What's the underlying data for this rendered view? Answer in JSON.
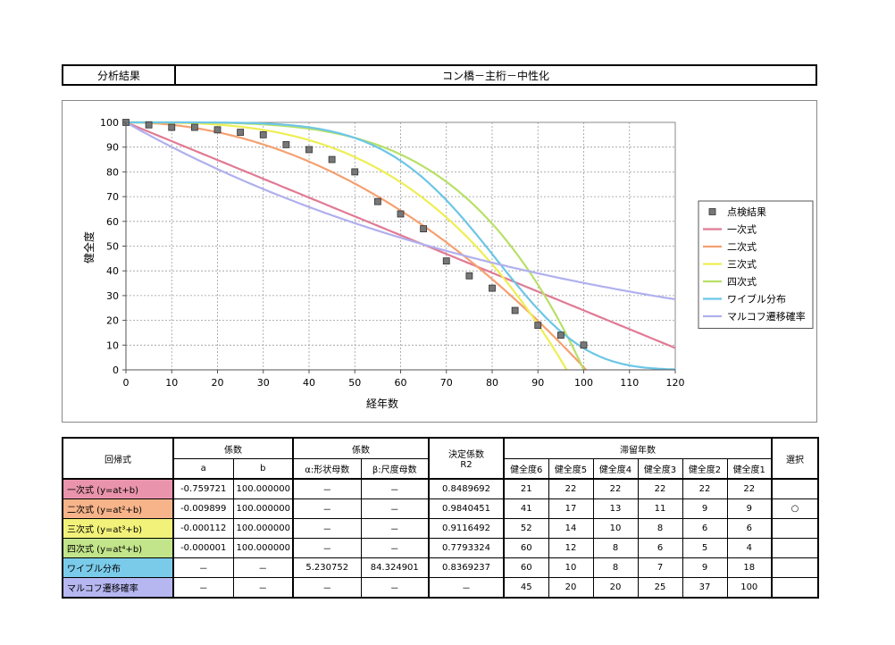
{
  "header": {
    "left": "分析結果",
    "right": "コン橋－主桁－中性化"
  },
  "chart_data": {
    "type": "scatter+line",
    "xlabel": "経年数",
    "ylabel": "健全度",
    "xlim": [
      0,
      120
    ],
    "ylim": [
      0,
      100
    ],
    "xticks": [
      0,
      10,
      20,
      30,
      40,
      50,
      60,
      70,
      80,
      90,
      100,
      110,
      120
    ],
    "yticks": [
      0,
      10,
      20,
      30,
      40,
      50,
      60,
      70,
      80,
      90,
      100
    ],
    "grid": true,
    "legend_position": "right",
    "scatter": {
      "name": "点検結果",
      "color": "#777777",
      "x": [
        0,
        5,
        10,
        15,
        20,
        25,
        30,
        35,
        40,
        45,
        50,
        55,
        60,
        65,
        70,
        75,
        80,
        85,
        90,
        95,
        100
      ],
      "y": [
        100,
        99,
        98,
        98,
        97,
        96,
        95,
        91,
        89,
        85,
        80,
        68,
        63,
        57,
        44,
        38,
        33,
        24,
        18,
        14,
        10
      ]
    },
    "series": [
      {
        "name": "一次式",
        "color": "#e07a95",
        "model": "poly",
        "a": -0.759721,
        "b": 100,
        "n": 1
      },
      {
        "name": "二次式",
        "color": "#f5a070",
        "model": "poly",
        "a": -0.009899,
        "b": 100,
        "n": 2
      },
      {
        "name": "三次式",
        "color": "#eeee55",
        "model": "poly",
        "a": -0.000112,
        "b": 100,
        "n": 3
      },
      {
        "name": "四次式",
        "color": "#b8e068",
        "model": "poly",
        "a": -1e-06,
        "b": 100,
        "n": 4
      },
      {
        "name": "ワイブル分布",
        "color": "#6cc6e6",
        "model": "weibull",
        "alpha": 5.230752,
        "beta": 84.324901
      },
      {
        "name": "マルコフ遷移確率",
        "color": "#b0b0ee",
        "model": "exp",
        "y120": 28.5
      }
    ]
  },
  "table": {
    "headers": {
      "model": "回帰式",
      "coef1": "係数",
      "coef2": "係数",
      "a": "a",
      "b": "b",
      "alpha": "α:形状母数",
      "beta": "β:尺度母数",
      "r2_line1": "決定係数",
      "r2_line2": "R2",
      "years": "滞留年数",
      "select": "選択",
      "years_cols": [
        "健全度6",
        "健全度5",
        "健全度4",
        "健全度3",
        "健全度2",
        "健全度1"
      ]
    },
    "rows": [
      {
        "label": "一次式 (y=at+b)",
        "color": "#e994ac",
        "a": "-0.759721",
        "b": "100.000000",
        "alpha": "－",
        "beta": "－",
        "r2": "0.8489692",
        "years": [
          "21",
          "22",
          "22",
          "22",
          "22",
          "22"
        ],
        "select": ""
      },
      {
        "label": "二次式 (y=at²+b)",
        "color": "#f7b48a",
        "a": "-0.009899",
        "b": "100.000000",
        "alpha": "－",
        "beta": "－",
        "r2": "0.9840451",
        "years": [
          "41",
          "17",
          "13",
          "11",
          "9",
          "9"
        ],
        "select": "○"
      },
      {
        "label": "三次式 (y=at³+b)",
        "color": "#f2f27a",
        "a": "-0.000112",
        "b": "100.000000",
        "alpha": "－",
        "beta": "－",
        "r2": "0.9116492",
        "years": [
          "52",
          "14",
          "10",
          "8",
          "6",
          "6"
        ],
        "select": ""
      },
      {
        "label": "四次式 (y=at⁴+b)",
        "color": "#c2e48a",
        "a": "-0.000001",
        "b": "100.000000",
        "alpha": "－",
        "beta": "－",
        "r2": "0.7793324",
        "years": [
          "60",
          "12",
          "8",
          "6",
          "5",
          "4"
        ],
        "select": ""
      },
      {
        "label": "ワイブル分布",
        "color": "#7acbea",
        "a": "－",
        "b": "－",
        "alpha": "5.230752",
        "beta": "84.324901",
        "r2": "0.8369237",
        "years": [
          "60",
          "10",
          "8",
          "7",
          "9",
          "18"
        ],
        "select": ""
      },
      {
        "label": "マルコフ遷移確率",
        "color": "#b6b6f0",
        "a": "－",
        "b": "－",
        "alpha": "－",
        "beta": "－",
        "r2": "－",
        "years": [
          "45",
          "20",
          "20",
          "25",
          "37",
          "100"
        ],
        "select": ""
      }
    ]
  }
}
